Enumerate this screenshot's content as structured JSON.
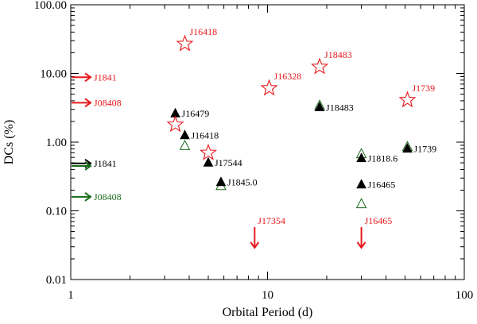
{
  "chart_data": {
    "type": "scatter",
    "title": "",
    "xlabel": "Orbital Period (d)",
    "ylabel": "DCs (%)",
    "xscale": "log",
    "yscale": "log",
    "xlim": [
      1,
      100
    ],
    "ylim": [
      0.01,
      100
    ],
    "xticks": [
      {
        "value": 1,
        "label": "1"
      },
      {
        "value": 10,
        "label": "10"
      },
      {
        "value": 100,
        "label": "100"
      }
    ],
    "yticks": [
      {
        "value": 0.01,
        "label": "0.01"
      },
      {
        "value": 0.1,
        "label": "0.10"
      },
      {
        "value": 1,
        "label": "1.00"
      },
      {
        "value": 10,
        "label": "10.00"
      },
      {
        "value": 100,
        "label": "100.00"
      }
    ],
    "colors": {
      "red": "#e8191c",
      "black": "#000000",
      "green": "#1a6b1a"
    },
    "series": [
      {
        "marker": "open-star",
        "color": "#e8191c",
        "points": [
          {
            "x": 3.8,
            "y": 27,
            "label": "J16418"
          },
          {
            "x": 3.4,
            "y": 1.8,
            "label": ""
          },
          {
            "x": 5.0,
            "y": 0.7,
            "label": ""
          },
          {
            "x": 10.2,
            "y": 6.1,
            "label": "J16328"
          },
          {
            "x": 18.4,
            "y": 12.5,
            "label": "J18483"
          },
          {
            "x": 51.4,
            "y": 4.1,
            "label": "J1739"
          }
        ]
      },
      {
        "marker": "filled-triangle",
        "color": "#000000",
        "points": [
          {
            "x": 3.4,
            "y": 2.6,
            "label": "J16479"
          },
          {
            "x": 3.8,
            "y": 1.25,
            "label": "J16418"
          },
          {
            "x": 5.0,
            "y": 0.5,
            "label": "J17544"
          },
          {
            "x": 5.8,
            "y": 0.26,
            "label": "J1845.0"
          },
          {
            "x": 18.4,
            "y": 3.2,
            "label": "J18483"
          },
          {
            "x": 30.0,
            "y": 0.58,
            "label": "J1818.6"
          },
          {
            "x": 30.0,
            "y": 0.24,
            "label": "J16465"
          },
          {
            "x": 51.4,
            "y": 0.8,
            "label": "J1739"
          }
        ]
      },
      {
        "marker": "open-triangle",
        "color": "#1a6b1a",
        "points": [
          {
            "x": 3.8,
            "y": 0.88
          },
          {
            "x": 5.8,
            "y": 0.23
          },
          {
            "x": 30.0,
            "y": 0.67
          },
          {
            "x": 30.0,
            "y": 0.125
          },
          {
            "x": 51.4,
            "y": 0.85
          },
          {
            "x": 18.4,
            "y": 3.4
          }
        ]
      }
    ],
    "limit_arrows_right": [
      {
        "y": 8.8,
        "label": "J1841",
        "color": "#e8191c"
      },
      {
        "y": 3.75,
        "label": "J08408",
        "color": "#e8191c"
      },
      {
        "y": 0.49,
        "label": "J1841",
        "color": "#000000"
      },
      {
        "y": 0.45,
        "label": "",
        "color": "#1a6b1a"
      },
      {
        "y": 0.16,
        "label": "J08408",
        "color": "#1a6b1a"
      }
    ],
    "limit_arrows_down": [
      {
        "x": 8.6,
        "y": 0.029,
        "label": "J17354",
        "color": "#e8191c"
      },
      {
        "x": 30.0,
        "y": 0.029,
        "label": "J16465",
        "color": "#e8191c"
      }
    ]
  }
}
